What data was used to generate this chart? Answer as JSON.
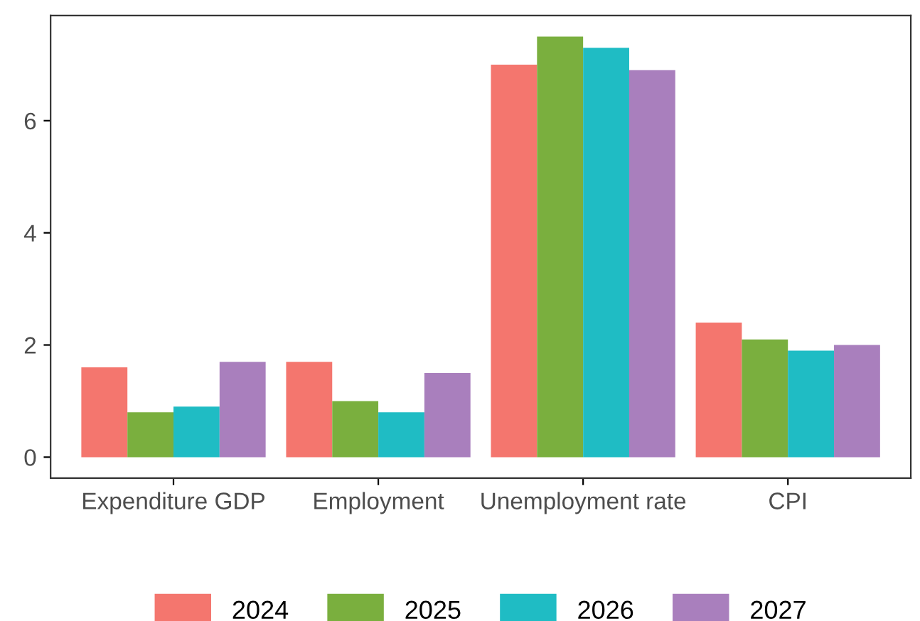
{
  "chart_data": {
    "type": "bar",
    "categories": [
      "Expenditure GDP",
      "Employment",
      "Unemployment rate",
      "CPI"
    ],
    "series": [
      {
        "name": "2024",
        "color": "#f4766e",
        "values": [
          1.6,
          1.7,
          7.0,
          2.4
        ]
      },
      {
        "name": "2025",
        "color": "#7aaf3e",
        "values": [
          0.8,
          1.0,
          7.5,
          2.1
        ]
      },
      {
        "name": "2026",
        "color": "#1fbcc4",
        "values": [
          0.9,
          0.8,
          7.3,
          1.9
        ]
      },
      {
        "name": "2027",
        "color": "#a97fbd",
        "values": [
          1.7,
          1.5,
          6.9,
          2.0
        ]
      }
    ],
    "ylim": [
      -0.375,
      7.875
    ],
    "yticks": [
      0,
      2,
      4,
      6
    ],
    "grid": false,
    "legend": "bottom"
  }
}
